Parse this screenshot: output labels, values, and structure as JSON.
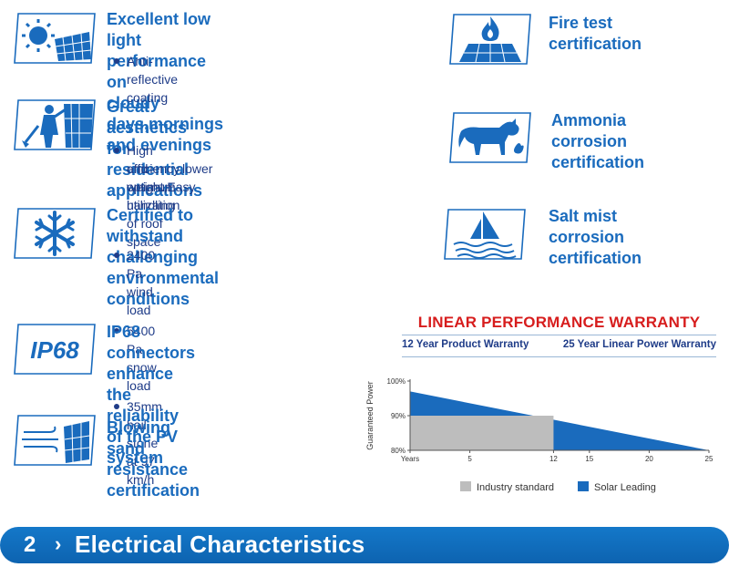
{
  "features_left": [
    {
      "title_lines": [
        "Excellent low light performance on",
        "cloudy days,mornings and evenings"
      ],
      "bullets": [
        "Anti-reflective coating"
      ],
      "icon": "sun-panel-icon"
    },
    {
      "title_lines": [
        "Great aesthetics for residential",
        "applications"
      ],
      "bullets": [
        "High efficiency,lower weight,Easy handling",
        "and optimum utilization of roof space"
      ],
      "icon": "installer-icon"
    },
    {
      "title_lines": [
        "Certified to withstand challenging",
        "environmental conditions"
      ],
      "bullets": [
        "2400 Pa wind load",
        "5400 Pa snow load",
        "35mm hail stone at 97 km/h"
      ],
      "icon": "snowflake-icon"
    },
    {
      "title_lines": [
        "IP68 connectors enhance the",
        "reliability of the PV system"
      ],
      "bullets": [],
      "icon": "ip68-icon",
      "icon_text": "IP68"
    },
    {
      "title_lines": [
        "Blowing sand resistance",
        "certification"
      ],
      "bullets": [],
      "icon": "wind-panel-icon"
    }
  ],
  "features_right": [
    {
      "title_lines": [
        "Fire test certification"
      ],
      "icon": "flame-panel-icon"
    },
    {
      "title_lines": [
        "Ammonia corrosion",
        "certification"
      ],
      "icon": "cow-icon"
    },
    {
      "title_lines": [
        "Salt mist corrosion",
        "certification"
      ],
      "icon": "sailboat-icon"
    }
  ],
  "warranty": {
    "title": "LINEAR PERFORMANCE WARRANTY",
    "product": "12 Year Product Warranty",
    "power": "25 Year Linear Power Warranty"
  },
  "chart_data": {
    "type": "area",
    "ylabel": "Guaranteed Power",
    "x_ticks": [
      "Years",
      "5",
      "12",
      "15",
      "20",
      "25"
    ],
    "x_tick_values": [
      0,
      5,
      12,
      15,
      20,
      25
    ],
    "y_ticks": [
      "100%",
      "90%",
      "80%"
    ],
    "y_tick_values": [
      100,
      90,
      80
    ],
    "xlim": [
      0,
      25
    ],
    "ylim": [
      80,
      100
    ],
    "series": [
      {
        "name": "Industry standard",
        "color": "#bdbdbd",
        "points": [
          [
            0,
            90
          ],
          [
            12,
            90
          ],
          [
            12,
            80
          ],
          [
            25,
            80
          ]
        ]
      },
      {
        "name": "Solar Leading",
        "color": "#1a6bbd",
        "points": [
          [
            0,
            97
          ],
          [
            25,
            80
          ]
        ]
      }
    ]
  },
  "footer": {
    "number": "2",
    "arrow": "›",
    "title": "Electrical Characteristics"
  },
  "colors": {
    "blue": "#1a6bbd",
    "red": "#d71d1d",
    "navy": "#1f3c88"
  }
}
